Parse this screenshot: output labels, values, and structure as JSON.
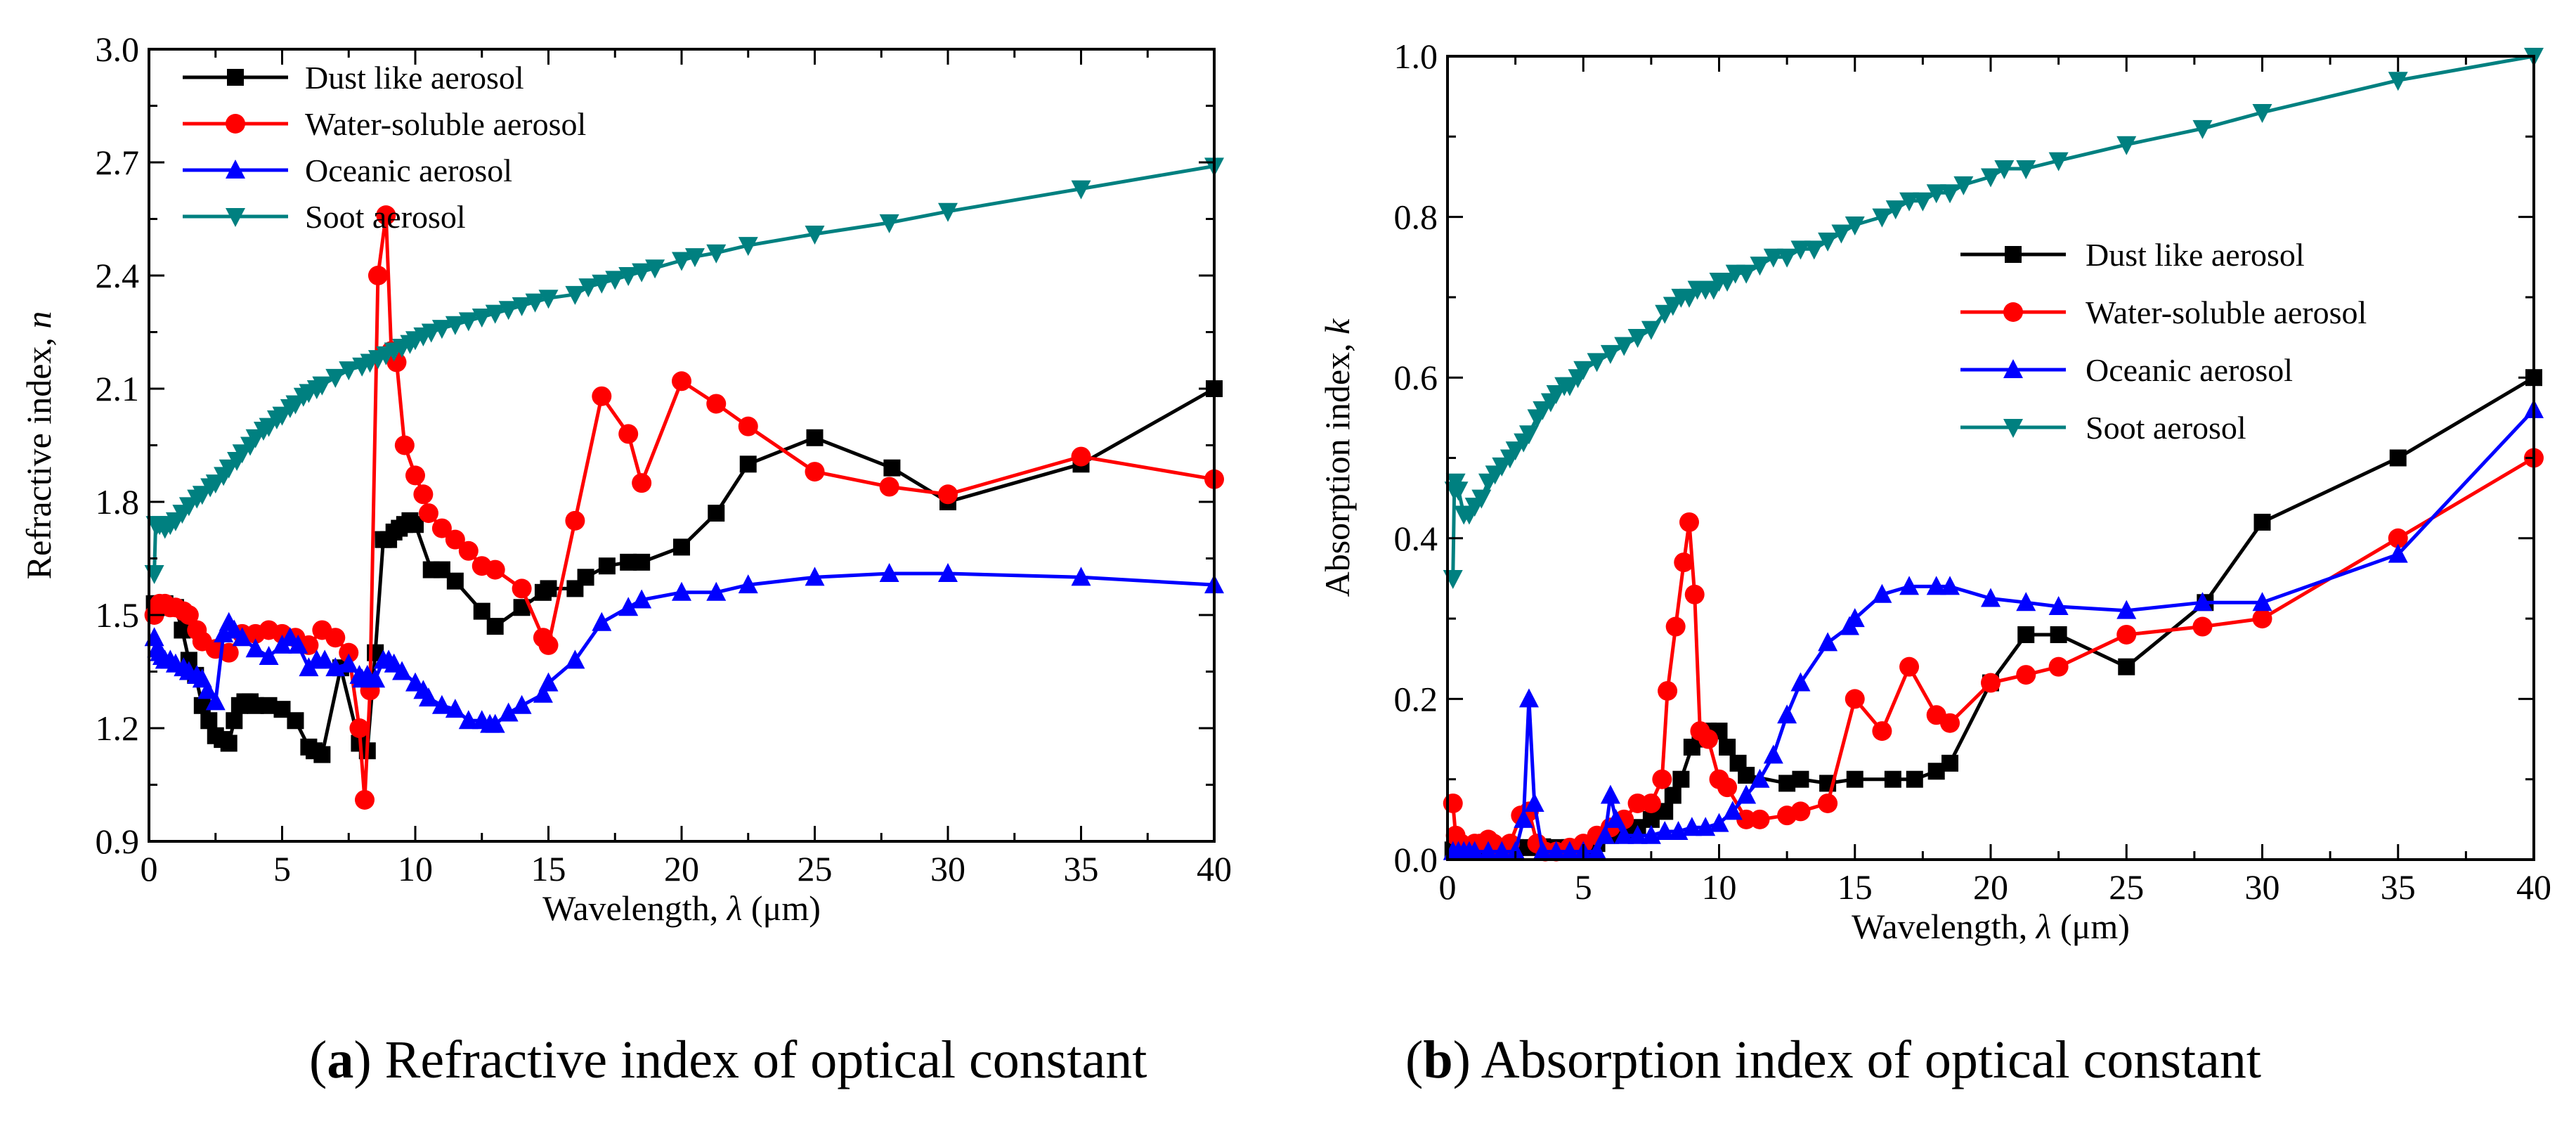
{
  "chart_data": [
    {
      "id": "a",
      "type": "line",
      "caption_letter": "a",
      "caption_text": "Refractive index of optical constant",
      "xlabel_pre": "Wavelength, ",
      "xlabel_sym": "λ",
      "xlabel_post": " (μm)",
      "ylabel_pre": "Refractive index, ",
      "ylabel_sym": "n",
      "xlim": [
        0,
        40
      ],
      "ylim": [
        0.9,
        3.0
      ],
      "xticks": [
        0,
        5,
        10,
        15,
        20,
        25,
        30,
        35,
        40
      ],
      "xtick_labels": [
        "0",
        "5",
        "10",
        "15",
        "20",
        "25",
        "30",
        "35",
        "40"
      ],
      "yticks": [
        0.9,
        1.2,
        1.5,
        1.8,
        2.1,
        2.4,
        2.7,
        3.0
      ],
      "ytick_labels": [
        "0.9",
        "1.2",
        "1.5",
        "1.8",
        "2.1",
        "2.4",
        "2.7",
        "3.0"
      ],
      "legend_position": "top-left",
      "series": [
        {
          "name": "Dust like aerosol",
          "color": "#000000",
          "marker": "square",
          "x": [
            0.2,
            0.3,
            0.4,
            0.5,
            0.6,
            0.8,
            1.0,
            1.25,
            1.5,
            1.75,
            2.0,
            2.25,
            2.5,
            2.75,
            3.0,
            3.2,
            3.4,
            3.6,
            3.8,
            4.0,
            4.5,
            5.0,
            5.5,
            6.0,
            6.2,
            6.5,
            7.2,
            7.9,
            8.2,
            8.5,
            8.8,
            9.0,
            9.2,
            9.4,
            9.6,
            9.8,
            10.0,
            10.6,
            11.0,
            11.5,
            12.5,
            13.0,
            14.0,
            14.8,
            15.0,
            16.0,
            16.4,
            17.2,
            18.0,
            18.5,
            20.0,
            21.3,
            22.5,
            25.0,
            27.9,
            30.0,
            35.0,
            40.0
          ],
          "y": [
            1.53,
            1.53,
            1.53,
            1.53,
            1.53,
            1.52,
            1.52,
            1.46,
            1.38,
            1.34,
            1.26,
            1.22,
            1.18,
            1.17,
            1.16,
            1.22,
            1.26,
            1.27,
            1.27,
            1.26,
            1.26,
            1.25,
            1.22,
            1.15,
            1.14,
            1.13,
            1.36,
            1.16,
            1.14,
            1.4,
            1.7,
            1.7,
            1.72,
            1.73,
            1.74,
            1.75,
            1.74,
            1.62,
            1.62,
            1.59,
            1.51,
            1.47,
            1.52,
            1.56,
            1.57,
            1.57,
            1.6,
            1.63,
            1.64,
            1.64,
            1.68,
            1.77,
            1.9,
            1.97,
            1.89,
            1.8,
            1.9,
            2.1
          ]
        },
        {
          "name": "Water-soluble aerosol",
          "color": "#FF0000",
          "marker": "circle",
          "x": [
            0.2,
            0.4,
            0.6,
            0.8,
            1.0,
            1.3,
            1.5,
            1.8,
            2.0,
            2.5,
            3.0,
            3.5,
            4.0,
            4.5,
            5.0,
            5.5,
            6.0,
            6.5,
            7.0,
            7.5,
            7.9,
            8.1,
            8.3,
            8.6,
            8.9,
            9.1,
            9.3,
            9.6,
            10.0,
            10.3,
            10.5,
            11.0,
            11.5,
            12.0,
            12.5,
            13.0,
            14.0,
            14.8,
            15.0,
            16.0,
            17.0,
            18.0,
            18.5,
            20.0,
            21.3,
            22.5,
            25.0,
            27.8,
            30.0,
            35.0,
            40.0
          ],
          "y": [
            1.5,
            1.53,
            1.53,
            1.52,
            1.52,
            1.51,
            1.5,
            1.46,
            1.43,
            1.41,
            1.4,
            1.45,
            1.45,
            1.46,
            1.45,
            1.44,
            1.42,
            1.46,
            1.44,
            1.4,
            1.2,
            1.01,
            1.3,
            2.4,
            2.56,
            2.2,
            2.17,
            1.95,
            1.87,
            1.82,
            1.77,
            1.73,
            1.7,
            1.67,
            1.63,
            1.62,
            1.57,
            1.44,
            1.42,
            1.75,
            2.08,
            1.98,
            1.85,
            2.12,
            2.06,
            2.0,
            1.88,
            1.84,
            1.82,
            1.92,
            1.86
          ]
        },
        {
          "name": "Oceanic aerosol",
          "color": "#0000FF",
          "marker": "triangle-up",
          "x": [
            0.2,
            0.3,
            0.4,
            0.5,
            0.6,
            0.8,
            1.0,
            1.3,
            1.5,
            1.8,
            2.0,
            2.2,
            2.5,
            2.8,
            3.0,
            3.2,
            3.5,
            4.0,
            4.5,
            5.0,
            5.3,
            5.6,
            6.0,
            6.3,
            6.6,
            7.0,
            7.5,
            7.9,
            8.0,
            8.2,
            8.5,
            8.8,
            9.0,
            9.2,
            9.5,
            10.0,
            10.3,
            10.5,
            11.0,
            11.5,
            12.0,
            12.5,
            12.8,
            13.0,
            13.5,
            14.0,
            14.8,
            15.0,
            16.0,
            17.0,
            18.0,
            18.5,
            20.0,
            21.3,
            22.5,
            25.0,
            27.8,
            30.0,
            35.0,
            40.0
          ],
          "y": [
            1.44,
            1.41,
            1.4,
            1.39,
            1.38,
            1.38,
            1.37,
            1.36,
            1.35,
            1.34,
            1.33,
            1.3,
            1.27,
            1.45,
            1.48,
            1.46,
            1.44,
            1.41,
            1.39,
            1.42,
            1.44,
            1.42,
            1.36,
            1.38,
            1.38,
            1.36,
            1.37,
            1.34,
            1.33,
            1.34,
            1.33,
            1.38,
            1.38,
            1.37,
            1.35,
            1.32,
            1.3,
            1.28,
            1.26,
            1.25,
            1.22,
            1.22,
            1.21,
            1.21,
            1.24,
            1.26,
            1.29,
            1.32,
            1.38,
            1.48,
            1.52,
            1.54,
            1.56,
            1.56,
            1.58,
            1.6,
            1.61,
            1.61,
            1.6,
            1.58
          ]
        },
        {
          "name": "Soot aerosol",
          "color": "#008080",
          "marker": "triangle-down",
          "x": [
            0.2,
            0.25,
            0.3,
            0.4,
            0.6,
            0.8,
            1.0,
            1.25,
            1.5,
            1.8,
            2.0,
            2.3,
            2.5,
            2.8,
            3.0,
            3.3,
            3.5,
            3.8,
            4.0,
            4.3,
            4.5,
            4.8,
            5.0,
            5.3,
            5.5,
            5.8,
            6.0,
            6.3,
            6.5,
            7.0,
            7.5,
            8.0,
            8.3,
            8.6,
            8.9,
            9.2,
            9.5,
            9.8,
            10.0,
            10.3,
            10.6,
            11.0,
            11.5,
            12.0,
            12.5,
            13.0,
            13.5,
            14.0,
            14.5,
            15.0,
            16.0,
            16.5,
            17.0,
            17.5,
            18.0,
            18.5,
            19.0,
            20.0,
            20.5,
            21.3,
            22.5,
            25.0,
            27.8,
            30.0,
            35.0,
            40.0
          ],
          "y": [
            1.61,
            1.74,
            1.74,
            1.74,
            1.73,
            1.74,
            1.75,
            1.77,
            1.79,
            1.81,
            1.82,
            1.84,
            1.85,
            1.87,
            1.89,
            1.91,
            1.93,
            1.95,
            1.97,
            1.99,
            2.0,
            2.02,
            2.03,
            2.05,
            2.06,
            2.08,
            2.09,
            2.1,
            2.11,
            2.13,
            2.15,
            2.16,
            2.17,
            2.18,
            2.19,
            2.2,
            2.21,
            2.22,
            2.23,
            2.24,
            2.25,
            2.26,
            2.27,
            2.28,
            2.29,
            2.3,
            2.31,
            2.32,
            2.33,
            2.34,
            2.35,
            2.37,
            2.38,
            2.39,
            2.4,
            2.41,
            2.42,
            2.44,
            2.45,
            2.46,
            2.48,
            2.51,
            2.54,
            2.57,
            2.63,
            2.69
          ]
        }
      ]
    },
    {
      "id": "b",
      "type": "line",
      "caption_letter": "b",
      "caption_text": "Absorption index of optical constant",
      "xlabel_pre": "Wavelength, ",
      "xlabel_sym": "λ",
      "xlabel_post": " (μm)",
      "ylabel_pre": "Absorption index, ",
      "ylabel_sym": "k",
      "xlim": [
        0,
        40
      ],
      "ylim": [
        0,
        1.0
      ],
      "xticks": [
        0,
        5,
        10,
        15,
        20,
        25,
        30,
        35,
        40
      ],
      "xtick_labels": [
        "0",
        "5",
        "10",
        "15",
        "20",
        "25",
        "30",
        "35",
        "40"
      ],
      "yticks": [
        0.0,
        0.2,
        0.4,
        0.6,
        0.8,
        1.0
      ],
      "ytick_labels": [
        "0.0",
        "0.2",
        "0.4",
        "0.6",
        "0.8",
        "1.0"
      ],
      "legend_position": "middle-right",
      "series": [
        {
          "name": "Dust like aerosol",
          "color": "#000000",
          "marker": "square",
          "x": [
            0.2,
            0.4,
            0.6,
            0.8,
            1.0,
            1.5,
            2.0,
            2.5,
            3.0,
            3.5,
            4.0,
            4.5,
            5.0,
            5.5,
            6.0,
            6.5,
            7.0,
            7.5,
            8.0,
            8.3,
            8.6,
            9.0,
            9.3,
            9.6,
            10.0,
            10.3,
            10.7,
            11.0,
            12.5,
            13.0,
            14.0,
            15.0,
            16.4,
            17.2,
            18.0,
            18.5,
            20.0,
            21.3,
            22.5,
            25.0,
            27.9,
            30.0,
            35.0,
            40.0
          ],
          "y": [
            0.012,
            0.012,
            0.012,
            0.012,
            0.012,
            0.012,
            0.013,
            0.015,
            0.015,
            0.016,
            0.015,
            0.015,
            0.016,
            0.02,
            0.03,
            0.035,
            0.04,
            0.05,
            0.06,
            0.08,
            0.1,
            0.14,
            0.15,
            0.16,
            0.16,
            0.14,
            0.12,
            0.105,
            0.095,
            0.1,
            0.095,
            0.1,
            0.1,
            0.1,
            0.11,
            0.12,
            0.22,
            0.28,
            0.28,
            0.24,
            0.32,
            0.42,
            0.5,
            0.6
          ]
        },
        {
          "name": "Water-soluble aerosol",
          "color": "#FF0000",
          "marker": "circle",
          "x": [
            0.2,
            0.3,
            0.5,
            0.7,
            1.0,
            1.2,
            1.5,
            1.7,
            2.0,
            2.3,
            2.7,
            3.0,
            3.3,
            3.6,
            4.0,
            4.5,
            5.0,
            5.5,
            6.0,
            6.5,
            7.0,
            7.5,
            7.9,
            8.1,
            8.4,
            8.7,
            8.9,
            9.1,
            9.3,
            9.6,
            10.0,
            10.3,
            11.0,
            11.5,
            12.5,
            13.0,
            14.0,
            15.0,
            16.0,
            17.0,
            18.0,
            18.5,
            20.0,
            21.3,
            22.5,
            25.0,
            27.8,
            30.0,
            35.0,
            40.0
          ],
          "y": [
            0.07,
            0.03,
            0.02,
            0.015,
            0.02,
            0.02,
            0.025,
            0.02,
            0.015,
            0.02,
            0.055,
            0.06,
            0.02,
            0.01,
            0.01,
            0.015,
            0.02,
            0.03,
            0.04,
            0.05,
            0.07,
            0.07,
            0.1,
            0.21,
            0.29,
            0.37,
            0.42,
            0.33,
            0.16,
            0.15,
            0.1,
            0.09,
            0.05,
            0.05,
            0.055,
            0.06,
            0.07,
            0.2,
            0.16,
            0.24,
            0.18,
            0.17,
            0.22,
            0.23,
            0.24,
            0.28,
            0.29,
            0.3,
            0.4,
            0.5
          ]
        },
        {
          "name": "Oceanic aerosol",
          "color": "#0000FF",
          "marker": "triangle-up",
          "x": [
            0.2,
            0.4,
            0.6,
            0.8,
            1.0,
            1.5,
            2.0,
            2.5,
            2.8,
            3.0,
            3.2,
            3.5,
            4.0,
            4.5,
            5.0,
            5.5,
            5.8,
            6.0,
            6.2,
            6.5,
            7.0,
            7.5,
            8.0,
            8.5,
            9.0,
            9.5,
            10.0,
            10.5,
            11.0,
            11.5,
            12.0,
            12.5,
            13.0,
            14.0,
            14.8,
            15.0,
            16.0,
            17.0,
            18.0,
            18.5,
            20.0,
            21.3,
            22.5,
            25.0,
            27.8,
            30.0,
            35.0,
            40.0
          ],
          "y": [
            0.01,
            0.01,
            0.01,
            0.01,
            0.01,
            0.01,
            0.01,
            0.01,
            0.05,
            0.2,
            0.07,
            0.01,
            0.01,
            0.01,
            0.01,
            0.01,
            0.03,
            0.08,
            0.05,
            0.03,
            0.03,
            0.03,
            0.035,
            0.035,
            0.04,
            0.04,
            0.045,
            0.06,
            0.08,
            0.1,
            0.13,
            0.18,
            0.22,
            0.27,
            0.29,
            0.3,
            0.33,
            0.34,
            0.34,
            0.34,
            0.325,
            0.32,
            0.315,
            0.31,
            0.32,
            0.32,
            0.38,
            0.56
          ]
        },
        {
          "name": "Soot aerosol",
          "color": "#008080",
          "marker": "triangle-down",
          "x": [
            0.2,
            0.25,
            0.3,
            0.4,
            0.6,
            0.8,
            1.0,
            1.25,
            1.5,
            1.75,
            2.0,
            2.3,
            2.5,
            2.8,
            3.0,
            3.3,
            3.5,
            3.8,
            4.0,
            4.3,
            4.5,
            4.8,
            5.0,
            5.5,
            6.0,
            6.5,
            7.0,
            7.5,
            8.0,
            8.3,
            8.6,
            8.9,
            9.2,
            9.5,
            9.8,
            10.0,
            10.3,
            10.6,
            11.0,
            11.5,
            12.0,
            12.5,
            13.0,
            13.5,
            14.0,
            14.5,
            15.0,
            16.0,
            16.5,
            17.0,
            17.5,
            18.0,
            18.5,
            19.0,
            20.0,
            20.5,
            21.3,
            22.5,
            25.0,
            27.8,
            30.0,
            35.0,
            40.0
          ],
          "y": [
            0.35,
            0.46,
            0.47,
            0.46,
            0.43,
            0.43,
            0.44,
            0.45,
            0.47,
            0.48,
            0.49,
            0.5,
            0.51,
            0.52,
            0.53,
            0.55,
            0.56,
            0.57,
            0.58,
            0.59,
            0.59,
            0.6,
            0.61,
            0.62,
            0.63,
            0.64,
            0.65,
            0.66,
            0.68,
            0.69,
            0.7,
            0.7,
            0.71,
            0.71,
            0.71,
            0.72,
            0.72,
            0.73,
            0.73,
            0.74,
            0.75,
            0.75,
            0.76,
            0.76,
            0.77,
            0.78,
            0.79,
            0.8,
            0.81,
            0.82,
            0.82,
            0.83,
            0.83,
            0.84,
            0.85,
            0.86,
            0.86,
            0.87,
            0.89,
            0.91,
            0.93,
            0.97,
            1.0
          ]
        }
      ]
    }
  ]
}
